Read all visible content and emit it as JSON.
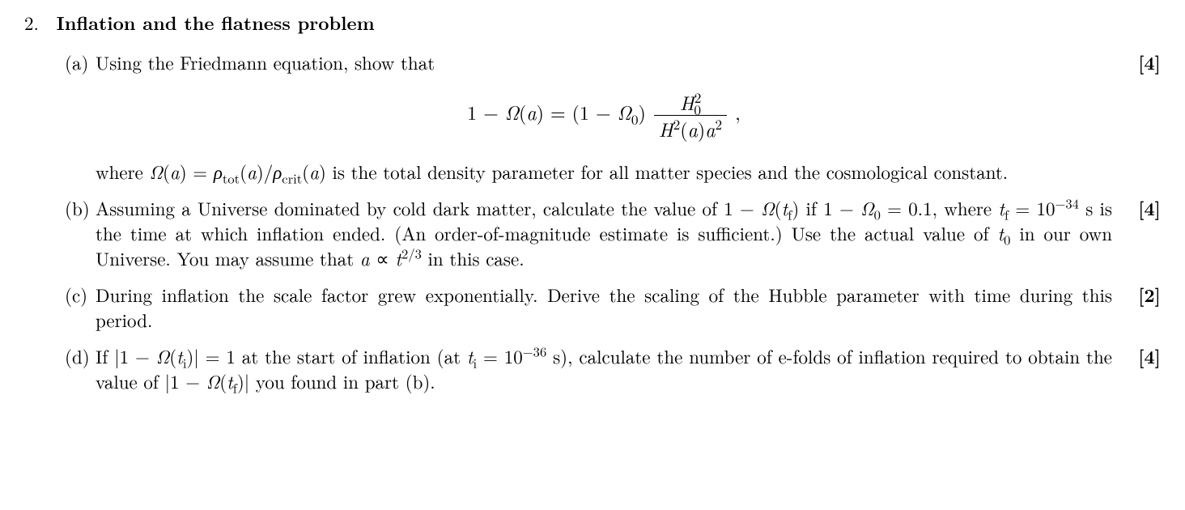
{
  "problem": {
    "number": "2.",
    "title": "Inflation and the flatness problem"
  },
  "parts": {
    "a": {
      "label": "(a)",
      "marks": "[4]",
      "intro": "Using the Friedmann equation, show that",
      "eq_lhs_pre": "1 − ",
      "eq_lhs_Omega": "Ω",
      "eq_lhs_arg": "(a)",
      "eq_eq": " = ",
      "eq_rhs_pre": "(1 − ",
      "eq_rhs_Omega0": "Ω",
      "eq_rhs_sub0": "0",
      "eq_rhs_post": ")",
      "frac_num_H": "H",
      "frac_num_sup": "2",
      "frac_num_sub": "0",
      "frac_den_H": "H",
      "frac_den_sup1": "2",
      "frac_den_arg": "(a)a",
      "frac_den_sup2": "2",
      "eq_trail": " ,",
      "after_pre": "where ",
      "after_Omega": "Ω",
      "after_arg": "(a) = ",
      "after_rho": "ρ",
      "after_tot": "tot",
      "after_arg2": "(a)/",
      "after_rho2": "ρ",
      "after_crit": "crit",
      "after_arg3": "(a)",
      "after_post": " is the total density parameter for all matter species and the cosmological constant."
    },
    "b": {
      "label": "(b)",
      "marks": "[4]",
      "t1": "Assuming a Universe dominated by cold dark matter, calculate the value of 1 − ",
      "Omega": "Ω",
      "t_arg": "(t",
      "sub_f": "f",
      "t2": ") if 1 − ",
      "Omega2": "Ω",
      "sub_0": "0",
      "t3": " = 0.1, where ",
      "t_var": "t",
      "sub_f2": "f",
      "t4": " = 10",
      "exp_minus34": "−34",
      "t5": " s is the time at which inflation ended. (An order-of-magnitude estimate is sufficient.) Use the actual value of ",
      "t_var2": "t",
      "sub_02": "0",
      "t6": " in our own Universe. You may assume that ",
      "a_var": "a",
      "t7": " ∝ ",
      "t_var3": "t",
      "exp_23": "2/3",
      "t8": " in this case."
    },
    "c": {
      "label": "(c)",
      "marks": "[2]",
      "text": "During inflation the scale factor grew exponentially.  Derive the scaling of the Hubble parameter with time during this period."
    },
    "d": {
      "label": "(d)",
      "marks": "[4]",
      "t1": "If |1 − ",
      "Omega": "Ω",
      "t_arg": "(t",
      "sub_i": "i",
      "t2": ")| = 1 at the start of inflation (at ",
      "t_var": "t",
      "sub_i2": "i",
      "t3": " = 10",
      "exp_minus36": "−36",
      "t4": " s), calculate the number of e-folds of inflation required to obtain the value of |1 − ",
      "Omega2": "Ω",
      "t_arg2": "(t",
      "sub_f": "f",
      "t5": ")| you found in part (b)."
    }
  }
}
